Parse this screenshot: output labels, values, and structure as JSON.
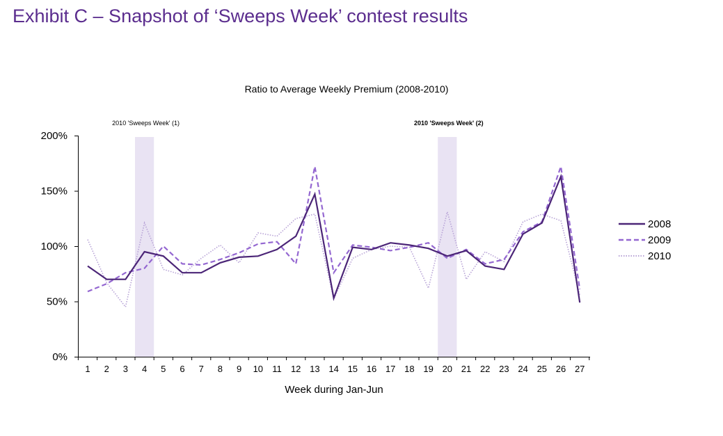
{
  "exhibit_title": "Exhibit C – Snapshot of ‘Sweeps Week’ contest results",
  "chart_data": {
    "type": "line",
    "title": "Ratio to Average Weekly Premium (2008-2010)",
    "xlabel": "Week during Jan-Jun",
    "ylabel": "",
    "categories": [
      "1",
      "2",
      "3",
      "4",
      "5",
      "6",
      "7",
      "8",
      "9",
      "10",
      "11",
      "12",
      "13",
      "14",
      "15",
      "16",
      "17",
      "18",
      "19",
      "20",
      "21",
      "22",
      "23",
      "24",
      "25",
      "26",
      "27"
    ],
    "ylim": [
      0,
      200
    ],
    "yticks": [
      0,
      50,
      100,
      150,
      200
    ],
    "ytick_labels": [
      "0%",
      "50%",
      "100%",
      "150%",
      "200%"
    ],
    "grid": false,
    "legend_position": "right",
    "series": [
      {
        "name": "2008",
        "color": "#4b2577",
        "style": "solid",
        "values": [
          82,
          70,
          70,
          95,
          91,
          76,
          76,
          85,
          90,
          91,
          97,
          109,
          147,
          53,
          99,
          97,
          103,
          101,
          98,
          91,
          96,
          82,
          79,
          111,
          121,
          163,
          49
        ]
      },
      {
        "name": "2009",
        "color": "#9467d1",
        "style": "dashed",
        "values": [
          59,
          66,
          76,
          80,
          100,
          84,
          83,
          88,
          94,
          102,
          104,
          84,
          172,
          76,
          101,
          99,
          96,
          99,
          103,
          89,
          97,
          84,
          88,
          113,
          122,
          172,
          61
        ]
      },
      {
        "name": "2010",
        "color": "#b7a2d6",
        "style": "dotted",
        "values": [
          106,
          67,
          45,
          121,
          79,
          74,
          89,
          101,
          85,
          112,
          109,
          125,
          129,
          52,
          89,
          97,
          100,
          99,
          62,
          131,
          70,
          95,
          86,
          122,
          129,
          123,
          56
        ]
      }
    ],
    "highlight_bands": [
      {
        "label": "2010 'Sweeps Week' (1)",
        "week": 4,
        "color": "#e9e3f3"
      },
      {
        "label": "2010 'Sweeps Week' (2)",
        "week": 20,
        "color": "#e9e3f3"
      }
    ]
  }
}
